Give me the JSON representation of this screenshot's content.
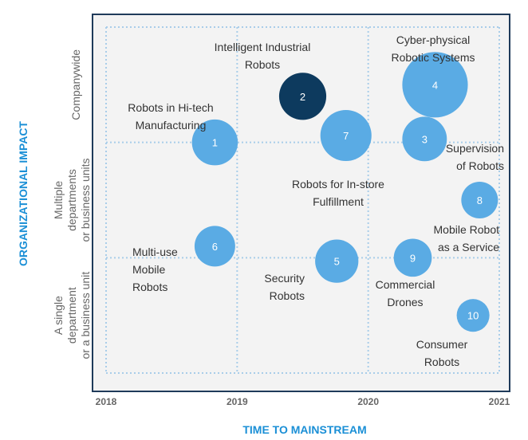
{
  "chart_data": {
    "type": "scatter",
    "xlabel": "TIME TO MAINSTREAM",
    "ylabel": "ORGANIZATIONAL IMPACT",
    "x_ticks": [
      "2018",
      "2019",
      "2020",
      "2021"
    ],
    "xlim": [
      2018,
      2021
    ],
    "y_levels": [
      [
        "A single",
        "department",
        "or a business unit"
      ],
      [
        "Multiple",
        "departments",
        "or business units"
      ],
      [
        "Companywide"
      ]
    ],
    "ylim": [
      0,
      3
    ],
    "grid": true,
    "colors": {
      "bubble": "#5aabe4",
      "highlight": "#0d3a5e",
      "grid": "#a9cde9",
      "axis": "#1f3b5a",
      "title": "#1a8fd6",
      "panel": "#f3f3f3"
    },
    "points": [
      {
        "id": "1",
        "x": 2018.83,
        "y": 2.0,
        "size": 0.35,
        "label": [
          "Robots in Hi-tech",
          "Manufacturing"
        ],
        "highlight": false
      },
      {
        "id": "2",
        "x": 2019.5,
        "y": 2.4,
        "size": 0.36,
        "label": [
          "Intelligent Industrial",
          "Robots"
        ],
        "highlight": true
      },
      {
        "id": "3",
        "x": 2020.43,
        "y": 2.03,
        "size": 0.34,
        "label": [
          "Supervision",
          "of Robots"
        ],
        "highlight": false
      },
      {
        "id": "4",
        "x": 2020.51,
        "y": 2.5,
        "size": 0.5,
        "label": [
          "Cyber-physical",
          "Robotic Systems"
        ],
        "highlight": false
      },
      {
        "id": "5",
        "x": 2019.76,
        "y": 0.97,
        "size": 0.33,
        "label": [
          "Security",
          "Robots"
        ],
        "highlight": false
      },
      {
        "id": "6",
        "x": 2018.83,
        "y": 1.1,
        "size": 0.31,
        "label": [
          "Multi-use",
          "Mobile",
          "Robots"
        ],
        "highlight": false
      },
      {
        "id": "7",
        "x": 2019.83,
        "y": 2.06,
        "size": 0.39,
        "label": [
          "Robots for In-store",
          "Fulfillment"
        ],
        "highlight": false
      },
      {
        "id": "8",
        "x": 2020.85,
        "y": 1.5,
        "size": 0.28,
        "label": [
          "Mobile Robot",
          "as a Service"
        ],
        "highlight": false
      },
      {
        "id": "9",
        "x": 2020.34,
        "y": 1.0,
        "size": 0.29,
        "label": [
          "Commercial",
          "Drones"
        ],
        "highlight": false
      },
      {
        "id": "10",
        "x": 2020.8,
        "y": 0.5,
        "size": 0.25,
        "label": [
          "Consumer",
          "Robots"
        ],
        "highlight": false
      }
    ]
  }
}
